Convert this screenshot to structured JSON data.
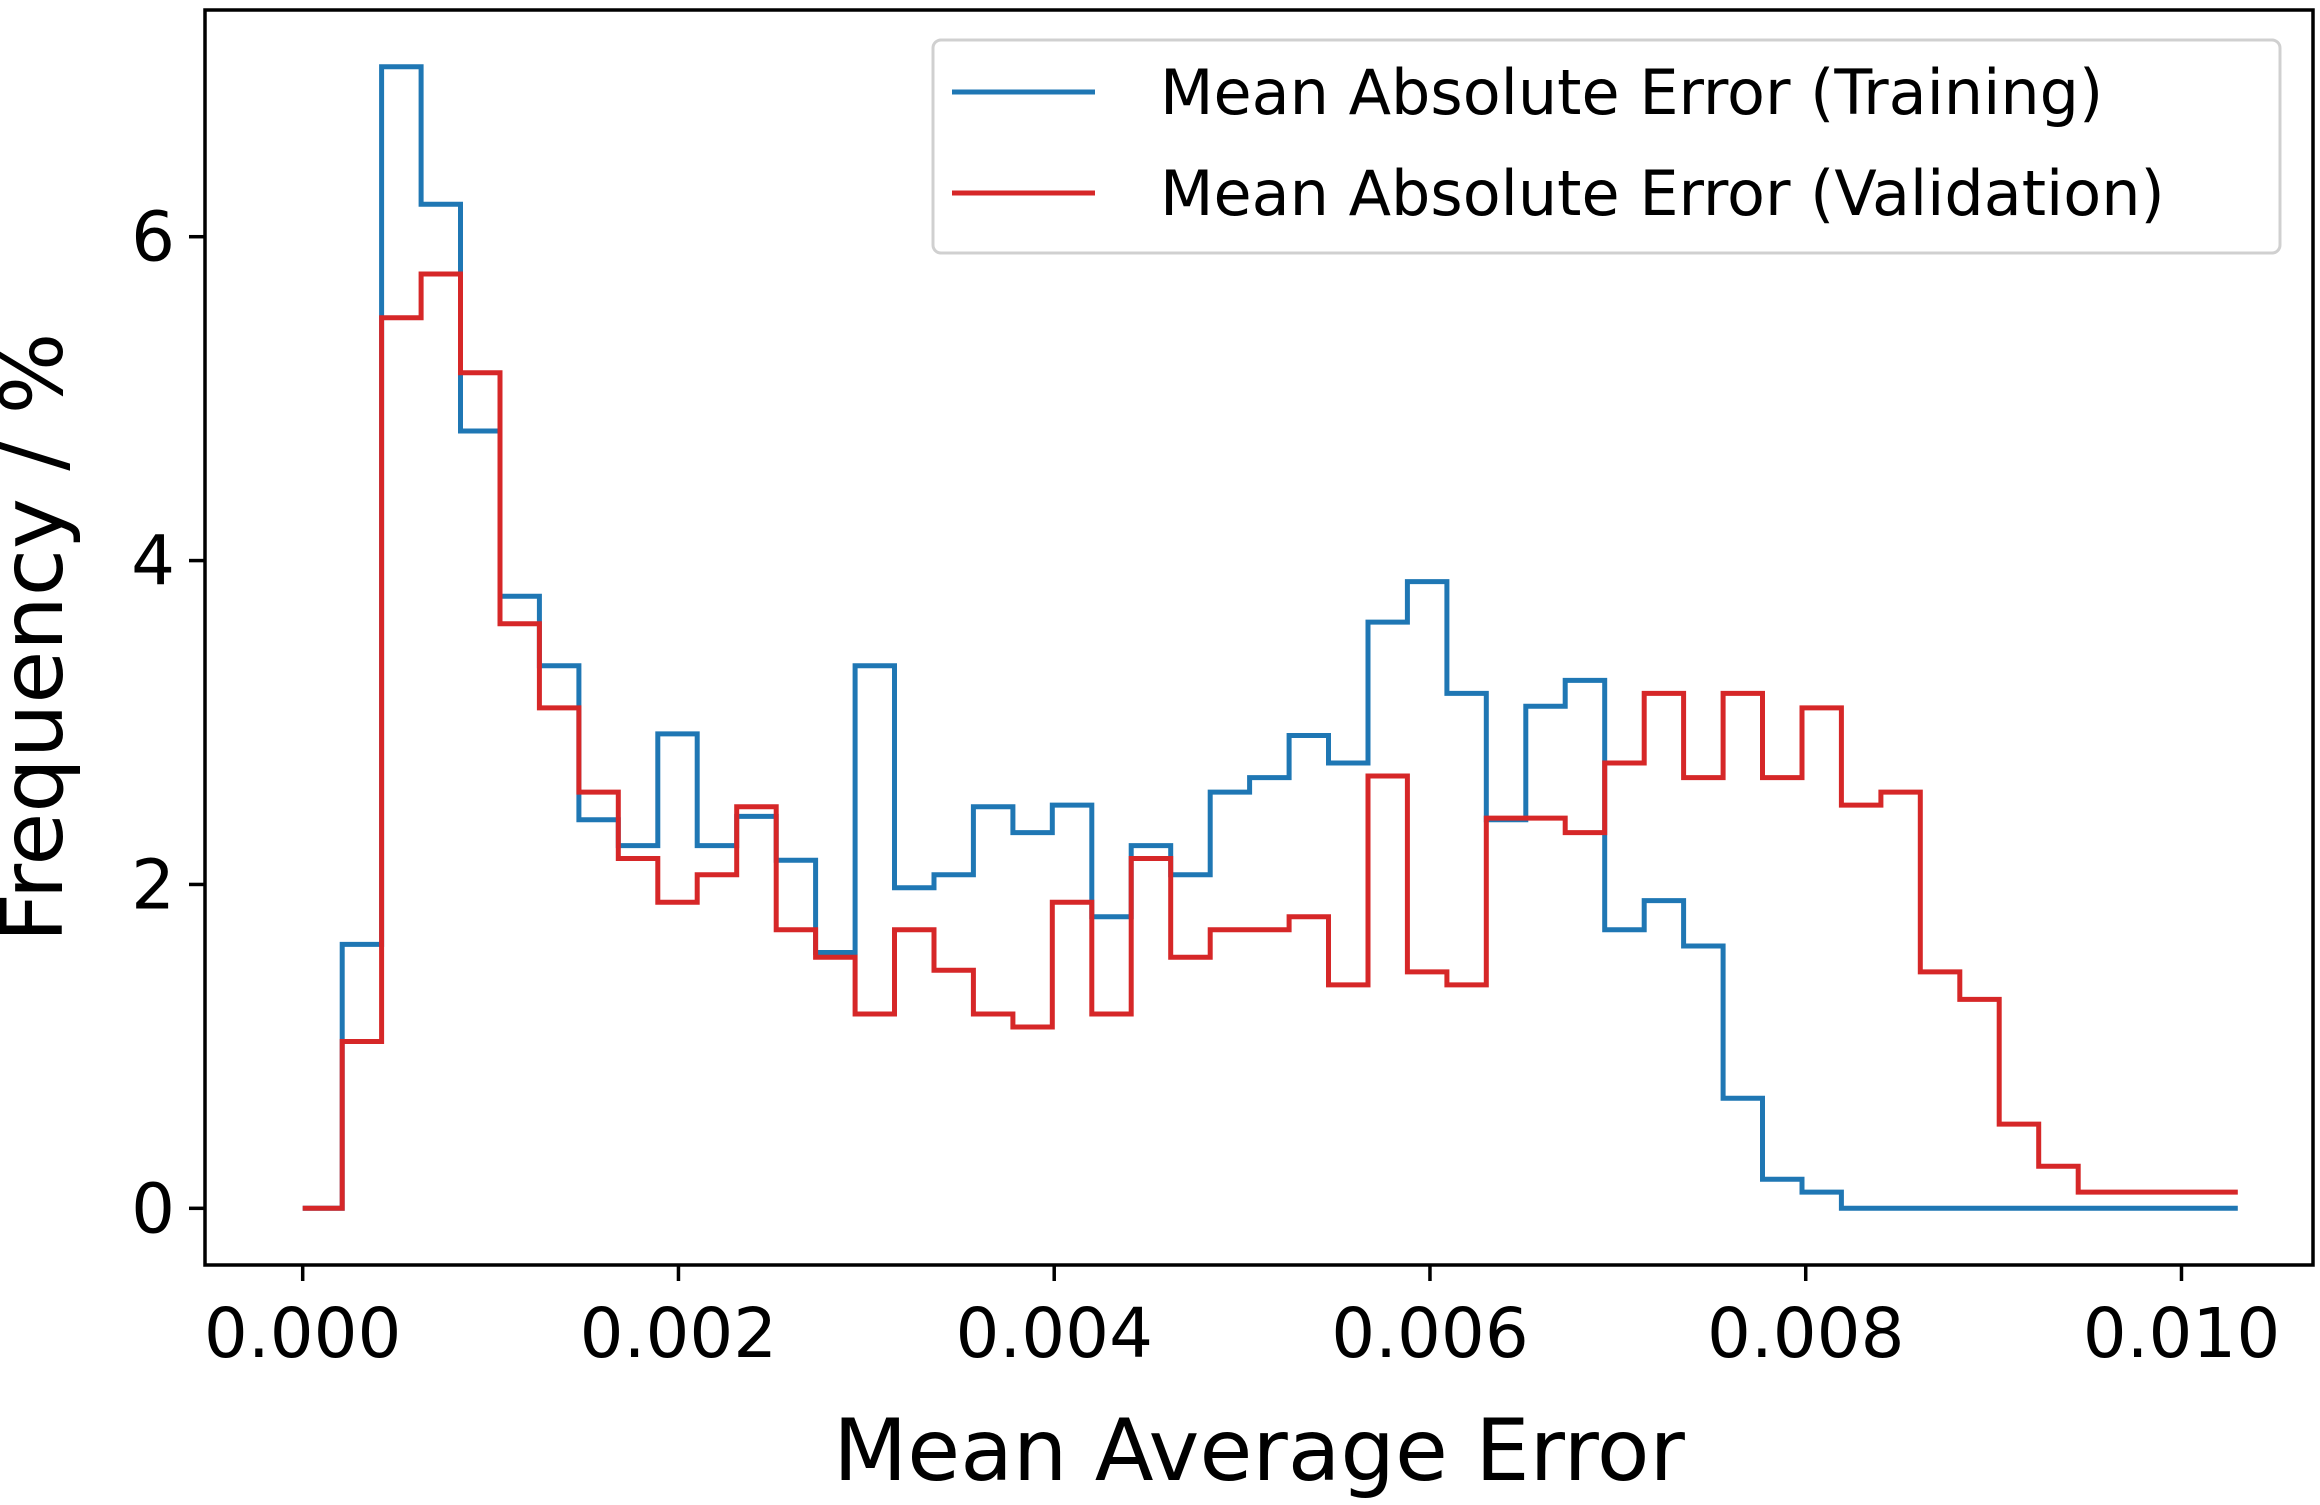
{
  "chart_data": {
    "type": "line",
    "style": "step-histogram",
    "xlabel": "Mean Average Error",
    "ylabel": "Frequency / %",
    "xlim": [
      -0.00052,
      0.0107
    ],
    "ylim": [
      -0.35,
      7.4
    ],
    "x_ticks": [
      {
        "value": 0.0,
        "label": "0.000"
      },
      {
        "value": 0.002,
        "label": "0.002"
      },
      {
        "value": 0.004,
        "label": "0.004"
      },
      {
        "value": 0.006,
        "label": "0.006"
      },
      {
        "value": 0.008,
        "label": "0.008"
      },
      {
        "value": 0.01,
        "label": "0.010"
      }
    ],
    "y_ticks": [
      {
        "value": 0,
        "label": "0"
      },
      {
        "value": 2,
        "label": "2"
      },
      {
        "value": 4,
        "label": "4"
      },
      {
        "value": 6,
        "label": "6"
      }
    ],
    "grid": false,
    "legend_position": "top-right",
    "bin_edges": [
      0.0,
      0.00021,
      0.00042,
      0.00063,
      0.00084,
      0.00105,
      0.00126,
      0.00147,
      0.00168,
      0.00189,
      0.0021,
      0.00231,
      0.00252,
      0.00273,
      0.00294,
      0.00315,
      0.00336,
      0.00357,
      0.00378,
      0.00399,
      0.0042,
      0.00441,
      0.00462,
      0.00483,
      0.00504,
      0.00525,
      0.00546,
      0.00567,
      0.00588,
      0.00609,
      0.0063,
      0.00651,
      0.00672,
      0.00693,
      0.00714,
      0.00735,
      0.00756,
      0.00777,
      0.00798,
      0.00819,
      0.0084,
      0.00861,
      0.00882,
      0.00903,
      0.00924,
      0.00945,
      0.00966,
      0.00987,
      0.01008,
      0.0103
    ],
    "series": [
      {
        "name": "Mean Absolute Error (Training)",
        "color": "#1f77b4",
        "values": [
          0,
          1.63,
          7.05,
          6.2,
          4.8,
          3.78,
          3.35,
          2.4,
          2.24,
          2.93,
          2.24,
          2.42,
          2.15,
          1.58,
          3.35,
          1.98,
          2.06,
          2.48,
          2.32,
          2.49,
          1.8,
          2.24,
          2.06,
          2.57,
          2.66,
          2.92,
          2.75,
          3.62,
          3.87,
          3.18,
          2.4,
          3.1,
          3.26,
          1.72,
          1.9,
          1.62,
          0.68,
          0.18,
          0.1,
          0,
          0,
          0,
          0,
          0,
          0,
          0,
          0,
          0,
          0
        ]
      },
      {
        "name": "Mean Absolute Error (Validation)",
        "color": "#d62728",
        "values": [
          0,
          1.03,
          5.5,
          5.77,
          5.16,
          3.61,
          3.09,
          2.57,
          2.16,
          1.89,
          2.06,
          2.48,
          1.72,
          1.55,
          1.2,
          1.72,
          1.47,
          1.2,
          1.12,
          1.89,
          1.2,
          2.16,
          1.55,
          1.72,
          1.72,
          1.8,
          1.38,
          2.67,
          1.46,
          1.38,
          2.41,
          2.41,
          2.32,
          2.75,
          3.18,
          2.66,
          3.18,
          2.66,
          3.09,
          2.49,
          2.57,
          1.46,
          1.29,
          0.52,
          0.26,
          0.1,
          0.1,
          0.1,
          0.1
        ]
      }
    ]
  }
}
